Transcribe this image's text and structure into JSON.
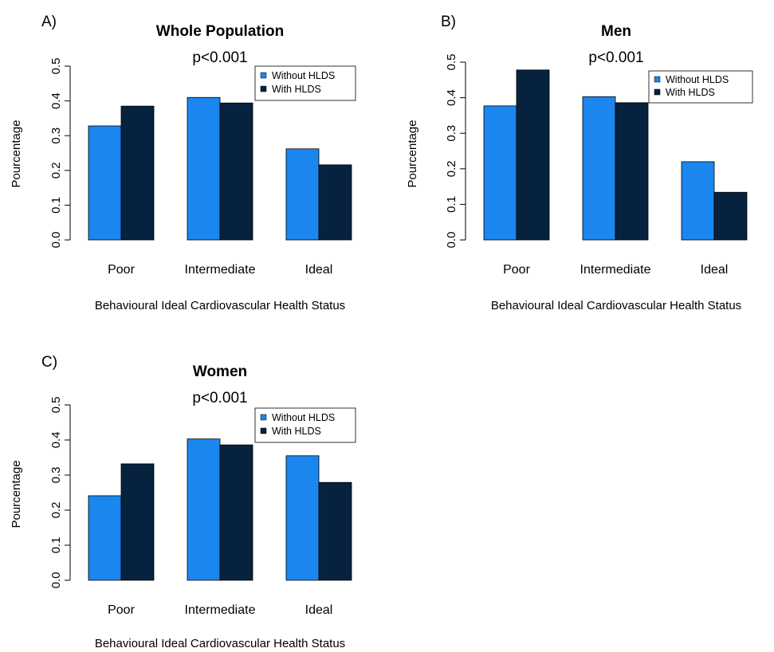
{
  "chart_data": [
    {
      "type": "bar",
      "panel": "A)",
      "title": "Whole Population",
      "annotation": "p<0.001",
      "xlabel": "Behavioural Ideal Cardiovascular Health Status",
      "ylabel": "Pourcentage",
      "categories": [
        "Poor",
        "Intermediate",
        "Ideal"
      ],
      "ylim": [
        0,
        0.5
      ],
      "yticks": [
        "0.0",
        "0.1",
        "0.2",
        "0.3",
        "0.4",
        "0.5"
      ],
      "legend_position": "top-right",
      "series": [
        {
          "name": "Without HLDS",
          "color": "#1b86ee",
          "values": [
            0.328,
            0.41,
            0.262
          ]
        },
        {
          "name": "With HLDS",
          "color": "#06223f",
          "values": [
            0.385,
            0.394,
            0.216
          ]
        }
      ]
    },
    {
      "type": "bar",
      "panel": "B)",
      "title": "Men",
      "annotation": "p<0.001",
      "xlabel": "Behavioural Ideal Cardiovascular Health Status",
      "ylabel": "Pourcentage",
      "categories": [
        "Poor",
        "Intermediate",
        "Ideal"
      ],
      "ylim": [
        0,
        0.5
      ],
      "yticks": [
        "0.0",
        "0.1",
        "0.2",
        "0.3",
        "0.4",
        "0.5"
      ],
      "legend_position": "top-right",
      "series": [
        {
          "name": "Without HLDS",
          "color": "#1b86ee",
          "values": [
            0.377,
            0.403,
            0.22
          ]
        },
        {
          "name": "With HLDS",
          "color": "#06223f",
          "values": [
            0.478,
            0.386,
            0.134
          ]
        }
      ]
    },
    {
      "type": "bar",
      "panel": "C)",
      "title": "Women",
      "annotation": "p<0.001",
      "xlabel": "Behavioural Ideal Cardiovascular Health Status",
      "ylabel": "Pourcentage",
      "categories": [
        "Poor",
        "Intermediate",
        "Ideal"
      ],
      "ylim": [
        0,
        0.5
      ],
      "yticks": [
        "0.0",
        "0.1",
        "0.2",
        "0.3",
        "0.4",
        "0.5"
      ],
      "legend_position": "top-right",
      "series": [
        {
          "name": "Without HLDS",
          "color": "#1b86ee",
          "values": [
            0.241,
            0.403,
            0.355
          ]
        },
        {
          "name": "With HLDS",
          "color": "#06223f",
          "values": [
            0.332,
            0.386,
            0.279
          ]
        }
      ]
    }
  ]
}
